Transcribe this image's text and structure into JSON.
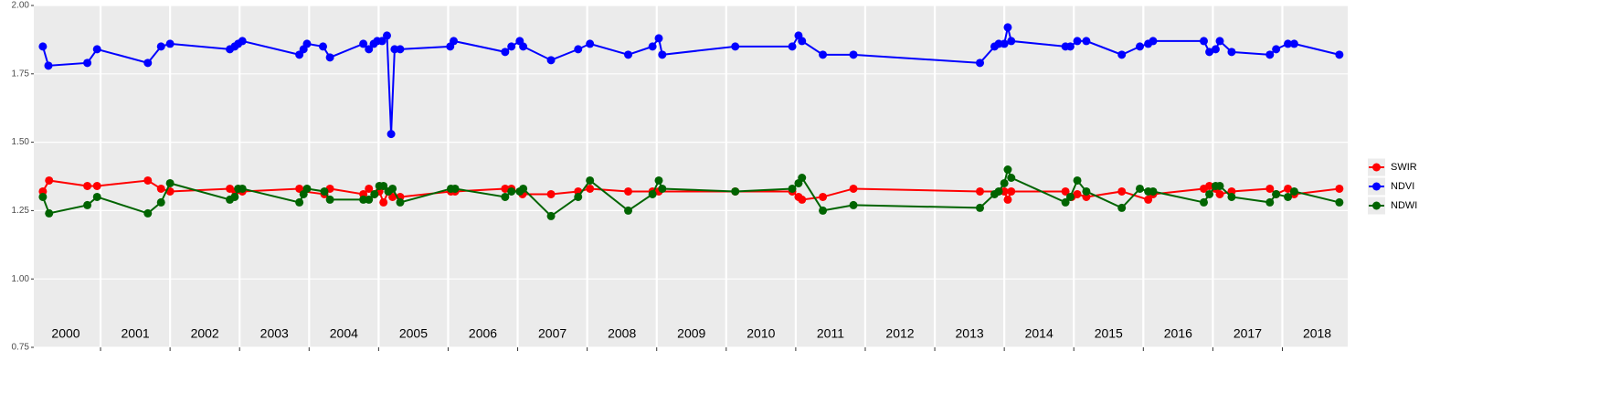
{
  "chart_data": {
    "type": "line",
    "xlim": [
      2000.04,
      2018.94
    ],
    "xticks": [
      2001,
      2002,
      2003,
      2004,
      2005,
      2006,
      2007,
      2008,
      2009,
      2010,
      2011,
      2012,
      2013,
      2014,
      2015,
      2016,
      2017,
      2018
    ],
    "year_labels": [
      {
        "value": 2000.5,
        "label": "2000"
      },
      {
        "value": 2001.5,
        "label": "2001"
      },
      {
        "value": 2002.5,
        "label": "2002"
      },
      {
        "value": 2003.5,
        "label": "2003"
      },
      {
        "value": 2004.5,
        "label": "2004"
      },
      {
        "value": 2005.5,
        "label": "2005"
      },
      {
        "value": 2006.5,
        "label": "2006"
      },
      {
        "value": 2007.5,
        "label": "2007"
      },
      {
        "value": 2008.5,
        "label": "2008"
      },
      {
        "value": 2009.5,
        "label": "2009"
      },
      {
        "value": 2010.5,
        "label": "2010"
      },
      {
        "value": 2011.5,
        "label": "2011"
      },
      {
        "value": 2012.5,
        "label": "2012"
      },
      {
        "value": 2013.5,
        "label": "2013"
      },
      {
        "value": 2014.5,
        "label": "2014"
      },
      {
        "value": 2015.5,
        "label": "2015"
      },
      {
        "value": 2016.5,
        "label": "2016"
      },
      {
        "value": 2017.5,
        "label": "2017"
      },
      {
        "value": 2018.5,
        "label": "2018"
      }
    ],
    "ylim": [
      0.75,
      2.0
    ],
    "yticks": [
      0.75,
      {
        "value": 1,
        "label": "1.00"
      },
      1.25,
      {
        "value": 1.5,
        "label": "1.50"
      },
      1.75,
      {
        "value": 2,
        "label": "2.00"
      }
    ],
    "grid": true,
    "legend": "right",
    "series": [
      {
        "name": "SWIR",
        "color": "#ff0000",
        "x": [
          2000.17,
          2000.26,
          2000.81,
          2000.95,
          2001.68,
          2001.87,
          2002.0,
          2002.86,
          2002.94,
          2003.04,
          2003.86,
          2003.92,
          2004.22,
          2004.3,
          2004.78,
          2004.86,
          2004.94,
          2005.01,
          2005.07,
          2005.14,
          2005.2,
          2005.31,
          2006.04,
          2006.1,
          2006.82,
          2006.91,
          2007.07,
          2007.48,
          2007.87,
          2008.04,
          2008.59,
          2008.94,
          2009.03,
          2010.13,
          2010.95,
          2011.04,
          2011.09,
          2011.39,
          2011.83,
          2013.65,
          2014.0,
          2014.05,
          2014.1,
          2014.88,
          2014.97,
          2015.05,
          2015.18,
          2015.69,
          2016.07,
          2016.14,
          2016.87,
          2016.95,
          2017.04,
          2017.1,
          2017.27,
          2017.82,
          2017.91,
          2018.08,
          2018.17,
          2018.82
        ],
        "values": [
          1.32,
          1.36,
          1.34,
          1.34,
          1.36,
          1.33,
          1.32,
          1.33,
          1.32,
          1.32,
          1.33,
          1.32,
          1.31,
          1.33,
          1.31,
          1.33,
          1.31,
          1.32,
          1.28,
          1.32,
          1.3,
          1.3,
          1.32,
          1.32,
          1.33,
          1.33,
          1.31,
          1.31,
          1.32,
          1.33,
          1.32,
          1.32,
          1.32,
          1.32,
          1.32,
          1.3,
          1.29,
          1.3,
          1.33,
          1.32,
          1.32,
          1.29,
          1.32,
          1.32,
          1.3,
          1.31,
          1.3,
          1.32,
          1.29,
          1.31,
          1.33,
          1.34,
          1.33,
          1.31,
          1.32,
          1.33,
          1.31,
          1.33,
          1.31,
          1.33
        ]
      },
      {
        "name": "NDVI",
        "color": "#0000ff",
        "x": [
          2000.17,
          2000.25,
          2000.81,
          2000.95,
          2001.68,
          2001.87,
          2002.0,
          2002.86,
          2002.93,
          2002.98,
          2003.04,
          2003.86,
          2003.92,
          2003.97,
          2004.2,
          2004.3,
          2004.78,
          2004.86,
          2004.93,
          2004.98,
          2005.05,
          2005.12,
          2005.18,
          2005.23,
          2005.31,
          2006.03,
          2006.08,
          2006.82,
          2006.91,
          2007.03,
          2007.08,
          2007.48,
          2007.87,
          2008.04,
          2008.59,
          2008.94,
          2009.03,
          2009.08,
          2010.13,
          2010.95,
          2011.04,
          2011.09,
          2011.39,
          2011.83,
          2013.65,
          2013.86,
          2013.92,
          2014.0,
          2014.05,
          2014.1,
          2014.88,
          2014.95,
          2015.05,
          2015.18,
          2015.69,
          2015.95,
          2016.07,
          2016.14,
          2016.87,
          2016.95,
          2017.04,
          2017.1,
          2017.27,
          2017.82,
          2017.91,
          2018.08,
          2018.17,
          2018.82
        ],
        "values": [
          1.85,
          1.78,
          1.79,
          1.84,
          1.79,
          1.85,
          1.86,
          1.84,
          1.85,
          1.86,
          1.87,
          1.82,
          1.84,
          1.86,
          1.85,
          1.81,
          1.86,
          1.84,
          1.86,
          1.87,
          1.87,
          1.89,
          1.53,
          1.84,
          1.84,
          1.85,
          1.87,
          1.83,
          1.85,
          1.87,
          1.85,
          1.8,
          1.84,
          1.86,
          1.82,
          1.85,
          1.88,
          1.82,
          1.85,
          1.85,
          1.89,
          1.87,
          1.82,
          1.82,
          1.79,
          1.85,
          1.86,
          1.86,
          1.92,
          1.87,
          1.85,
          1.85,
          1.87,
          1.87,
          1.82,
          1.85,
          1.86,
          1.87,
          1.87,
          1.83,
          1.84,
          1.87,
          1.83,
          1.82,
          1.84,
          1.86,
          1.86,
          1.82
        ]
      },
      {
        "name": "NDWI",
        "color": "#006400",
        "x": [
          2000.17,
          2000.26,
          2000.81,
          2000.95,
          2001.68,
          2001.87,
          2002.0,
          2002.86,
          2002.93,
          2002.98,
          2003.04,
          2003.86,
          2003.92,
          2003.97,
          2004.22,
          2004.3,
          2004.78,
          2004.86,
          2004.94,
          2005.01,
          2005.07,
          2005.14,
          2005.2,
          2005.31,
          2006.04,
          2006.1,
          2006.82,
          2006.91,
          2007.03,
          2007.08,
          2007.48,
          2007.87,
          2008.04,
          2008.59,
          2008.94,
          2009.03,
          2009.08,
          2010.13,
          2010.95,
          2011.04,
          2011.09,
          2011.39,
          2011.83,
          2013.65,
          2013.86,
          2013.92,
          2014.0,
          2014.05,
          2014.1,
          2014.88,
          2014.95,
          2015.05,
          2015.18,
          2015.69,
          2015.95,
          2016.07,
          2016.14,
          2016.87,
          2016.95,
          2017.04,
          2017.1,
          2017.27,
          2017.82,
          2017.91,
          2018.08,
          2018.17,
          2018.82
        ],
        "values": [
          1.3,
          1.24,
          1.27,
          1.3,
          1.24,
          1.28,
          1.35,
          1.29,
          1.3,
          1.33,
          1.33,
          1.28,
          1.31,
          1.33,
          1.32,
          1.29,
          1.29,
          1.29,
          1.31,
          1.34,
          1.34,
          1.32,
          1.33,
          1.28,
          1.33,
          1.33,
          1.3,
          1.32,
          1.32,
          1.33,
          1.23,
          1.3,
          1.36,
          1.25,
          1.31,
          1.36,
          1.33,
          1.32,
          1.33,
          1.35,
          1.37,
          1.25,
          1.27,
          1.26,
          1.31,
          1.32,
          1.35,
          1.4,
          1.37,
          1.28,
          1.3,
          1.36,
          1.32,
          1.26,
          1.33,
          1.32,
          1.32,
          1.28,
          1.31,
          1.34,
          1.34,
          1.3,
          1.28,
          1.31,
          1.3,
          1.32,
          1.28
        ]
      }
    ]
  }
}
